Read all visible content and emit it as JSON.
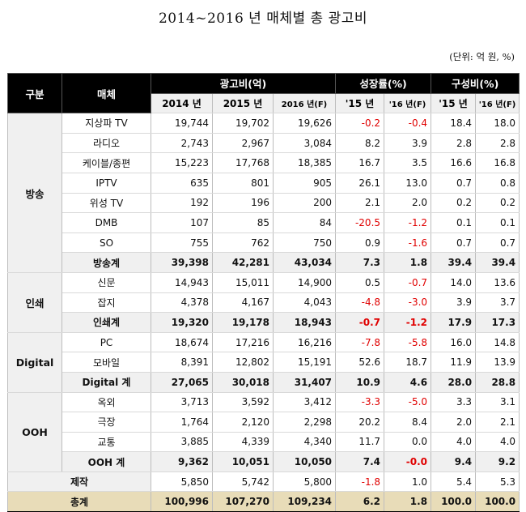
{
  "title": "2014~2016 년 매체별 총 광고비",
  "unit_note": "(단위: 억 원, %)",
  "headers": {
    "category": "구분",
    "medium": "매체",
    "ad_spend": "광고비(억)",
    "growth": "성장률(%)",
    "share": "구성비(%)",
    "y2014": "2014 년",
    "y2015": "2015 년",
    "y2016": "2016 년(F)",
    "g15": "'15 년",
    "g16": "'16 년(F)",
    "s15": "'15 년",
    "s16": "'16 년(F)"
  },
  "groups": [
    {
      "name": "방송",
      "rows": [
        {
          "medium": "지상파 TV",
          "v14": "19,744",
          "v15": "19,702",
          "v16": "19,626",
          "g15": "-0.2",
          "g16": "-0.4",
          "s15": "18.4",
          "s16": "18.0"
        },
        {
          "medium": "라디오",
          "v14": "2,743",
          "v15": "2,967",
          "v16": "3,084",
          "g15": "8.2",
          "g16": "3.9",
          "s15": "2.8",
          "s16": "2.8"
        },
        {
          "medium": "케이블/종편",
          "v14": "15,223",
          "v15": "17,768",
          "v16": "18,385",
          "g15": "16.7",
          "g16": "3.5",
          "s15": "16.6",
          "s16": "16.8"
        },
        {
          "medium": "IPTV",
          "v14": "635",
          "v15": "801",
          "v16": "905",
          "g15": "26.1",
          "g16": "13.0",
          "s15": "0.7",
          "s16": "0.8"
        },
        {
          "medium": "위성 TV",
          "v14": "192",
          "v15": "196",
          "v16": "200",
          "g15": "2.1",
          "g16": "2.0",
          "s15": "0.2",
          "s16": "0.2"
        },
        {
          "medium": "DMB",
          "v14": "107",
          "v15": "85",
          "v16": "84",
          "g15": "-20.5",
          "g16": "-1.2",
          "s15": "0.1",
          "s16": "0.1"
        },
        {
          "medium": "SO",
          "v14": "755",
          "v15": "762",
          "v16": "750",
          "g15": "0.9",
          "g16": "-1.6",
          "s15": "0.7",
          "s16": "0.7"
        }
      ],
      "subtotal": {
        "medium": "방송계",
        "v14": "39,398",
        "v15": "42,281",
        "v16": "43,034",
        "g15": "7.3",
        "g16": "1.8",
        "s15": "39.4",
        "s16": "39.4"
      }
    },
    {
      "name": "인쇄",
      "rows": [
        {
          "medium": "신문",
          "v14": "14,943",
          "v15": "15,011",
          "v16": "14,900",
          "g15": "0.5",
          "g16": "-0.7",
          "s15": "14.0",
          "s16": "13.6"
        },
        {
          "medium": "잡지",
          "v14": "4,378",
          "v15": "4,167",
          "v16": "4,043",
          "g15": "-4.8",
          "g16": "-3.0",
          "s15": "3.9",
          "s16": "3.7"
        }
      ],
      "subtotal": {
        "medium": "인쇄계",
        "v14": "19,320",
        "v15": "19,178",
        "v16": "18,943",
        "g15": "-0.7",
        "g16": "-1.2",
        "s15": "17.9",
        "s16": "17.3"
      }
    },
    {
      "name": "Digital",
      "rows": [
        {
          "medium": "PC",
          "v14": "18,674",
          "v15": "17,216",
          "v16": "16,216",
          "g15": "-7.8",
          "g16": "-5.8",
          "s15": "16.0",
          "s16": "14.8"
        },
        {
          "medium": "모바일",
          "v14": "8,391",
          "v15": "12,802",
          "v16": "15,191",
          "g15": "52.6",
          "g16": "18.7",
          "s15": "11.9",
          "s16": "13.9"
        }
      ],
      "subtotal": {
        "medium": "Digital 계",
        "v14": "27,065",
        "v15": "30,018",
        "v16": "31,407",
        "g15": "10.9",
        "g16": "4.6",
        "s15": "28.0",
        "s16": "28.8"
      }
    },
    {
      "name": "OOH",
      "rows": [
        {
          "medium": "옥외",
          "v14": "3,713",
          "v15": "3,592",
          "v16": "3,412",
          "g15": "-3.3",
          "g16": "-5.0",
          "s15": "3.3",
          "s16": "3.1"
        },
        {
          "medium": "극장",
          "v14": "1,764",
          "v15": "2,120",
          "v16": "2,298",
          "g15": "20.2",
          "g16": "8.4",
          "s15": "2.0",
          "s16": "2.1"
        },
        {
          "medium": "교통",
          "v14": "3,885",
          "v15": "4,339",
          "v16": "4,340",
          "g15": "11.7",
          "g16": "0.0",
          "s15": "4.0",
          "s16": "4.0"
        }
      ],
      "subtotal": {
        "medium": "OOH 계",
        "v14": "9,362",
        "v15": "10,051",
        "v16": "10,050",
        "g15": "7.4",
        "g16": "-0.0",
        "s15": "9.4",
        "s16": "9.2"
      }
    }
  ],
  "production": {
    "label": "제작",
    "v14": "5,850",
    "v15": "5,742",
    "v16": "5,800",
    "g15": "-1.8",
    "g16": "1.0",
    "s15": "5.4",
    "s16": "5.3"
  },
  "grand_total": {
    "label": "총계",
    "v14": "100,996",
    "v15": "107,270",
    "v16": "109,234",
    "g15": "6.2",
    "g16": "1.8",
    "s15": "100.0",
    "s16": "100.0"
  },
  "colors": {
    "negative": "#e00000",
    "header": "#000000",
    "subtotal_bg": "#f0f0f0",
    "total_bg": "#e8dcb8"
  }
}
